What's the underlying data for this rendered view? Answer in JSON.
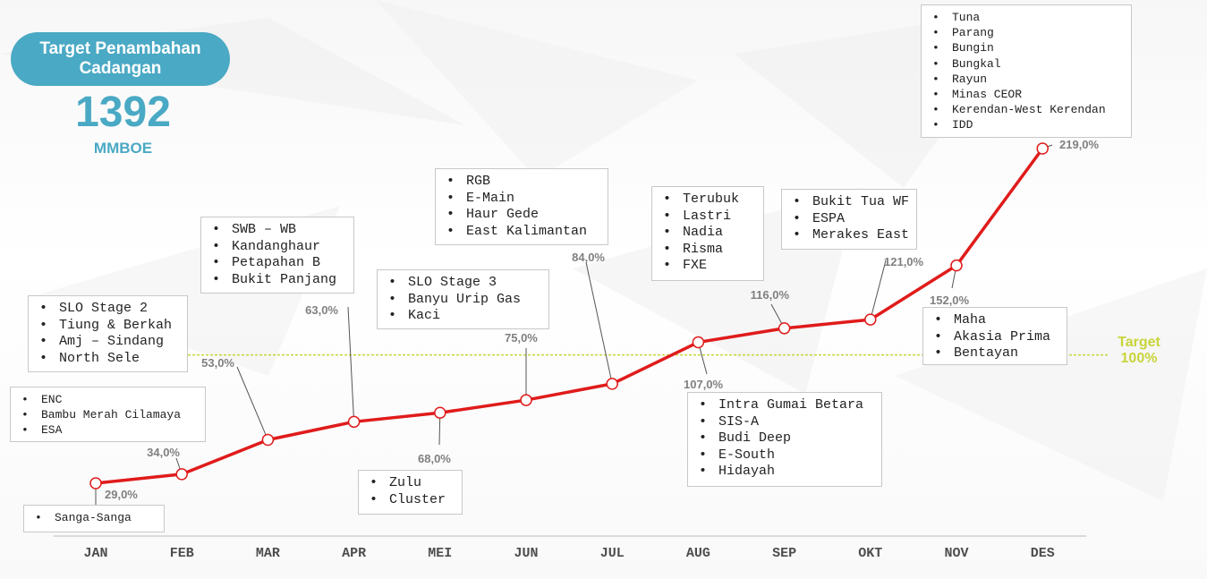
{
  "header": {
    "title_line1": "Target Penambahan",
    "title_line2": "Cadangan",
    "target_value": "1392",
    "target_unit": "MMBOE"
  },
  "target_line": {
    "label_line1": "Target",
    "label_line2": "100%",
    "value": 100,
    "color": "#c8d43a"
  },
  "colors": {
    "line": "#e01b1b",
    "accent": "#4aa9c4",
    "label": "#808080",
    "axis_text": "#4d4d4d"
  },
  "chart_data": {
    "type": "line",
    "categories": [
      "JAN",
      "FEB",
      "MAR",
      "APR",
      "MEI",
      "JUN",
      "JUL",
      "AUG",
      "SEP",
      "OKT",
      "NOV",
      "DES"
    ],
    "values": [
      29,
      34,
      53,
      63,
      68,
      75,
      84,
      107,
      116,
      121,
      152,
      219
    ],
    "value_labels": [
      "29,0%",
      "34,0%",
      "53,0%",
      "63,0%",
      "68,0%",
      "75,0%",
      "84,0%",
      "107,0%",
      "116,0%",
      "121,0%",
      "152,0%",
      "219,0%"
    ],
    "unit": "%"
  },
  "callouts": [
    {
      "month": "JAN",
      "items": [
        "Sanga-Sanga"
      ]
    },
    {
      "month": "FEB",
      "items": [
        "ENC",
        "Bambu Merah Cilamaya",
        "ESA"
      ]
    },
    {
      "month": "MAR",
      "items": [
        "SLO Stage 2",
        "Tiung & Berkah",
        "Amj – Sindang",
        "North Sele"
      ]
    },
    {
      "month": "APR",
      "items": [
        "SWB – WB",
        "Kandanghaur",
        "Petapahan B",
        "Bukit Panjang"
      ]
    },
    {
      "month": "MEI",
      "items": [
        "Zulu",
        "Cluster"
      ]
    },
    {
      "month": "JUN",
      "items": [
        "SLO Stage 3",
        "Banyu Urip Gas",
        "Kaci"
      ]
    },
    {
      "month": "JUL",
      "items": [
        "RGB",
        "E-Main",
        "Haur Gede",
        "East Kalimantan"
      ]
    },
    {
      "month": "AUG",
      "items": [
        "Intra Gumai Betara",
        "SIS-A",
        "Budi Deep",
        "E-South",
        "Hidayah"
      ]
    },
    {
      "month": "SEP",
      "items": [
        "Terubuk",
        "Lastri",
        "Nadia",
        "Risma",
        "FXE"
      ]
    },
    {
      "month": "OKT",
      "items": [
        "Bukit Tua WF",
        "ESPA",
        "Merakes East"
      ]
    },
    {
      "month": "NOV",
      "items": [
        "Maha",
        "Akasia Prima",
        "Bentayan"
      ]
    },
    {
      "month": "DES",
      "items": [
        "Tuna",
        "Parang",
        "Bungin",
        "Bungkal",
        "Rayun",
        "Minas CEOR",
        "Kerendan-West Kerendan",
        "IDD"
      ]
    }
  ]
}
